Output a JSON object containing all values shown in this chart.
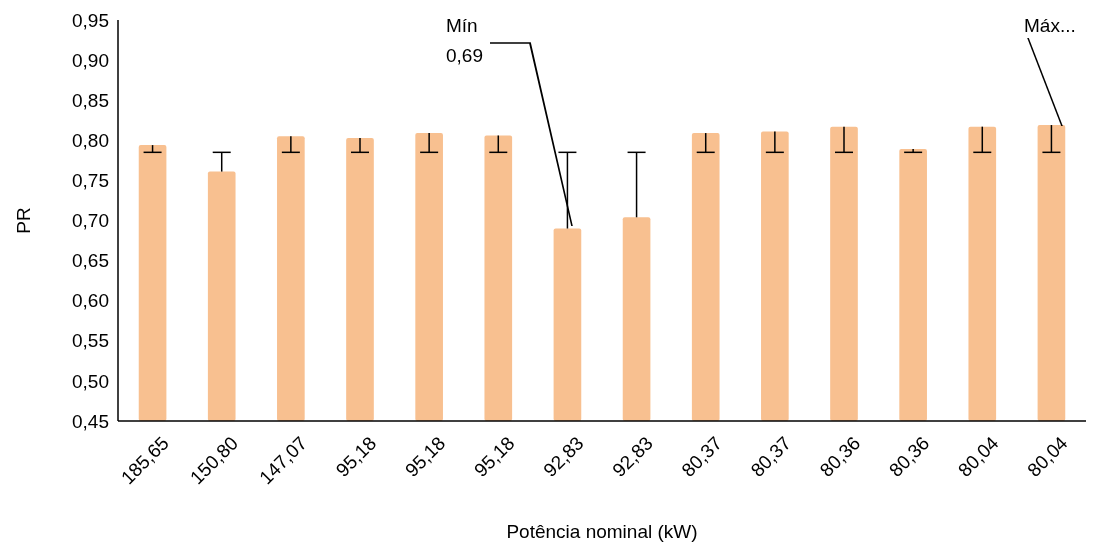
{
  "chart_data": {
    "type": "bar",
    "xlabel": "Potência nominal (kW)",
    "ylabel": "PR",
    "categories": [
      "185,65",
      "150,80",
      "147,07",
      "95,18",
      "95,18",
      "95,18",
      "92,83",
      "92,83",
      "80,37",
      "80,37",
      "80,36",
      "80,36",
      "80,04",
      "80,04"
    ],
    "values": [
      0.794,
      0.761,
      0.805,
      0.803,
      0.809,
      0.806,
      0.69,
      0.704,
      0.809,
      0.811,
      0.817,
      0.789,
      0.817,
      0.819
    ],
    "errors": [
      [
        0.785,
        0.794
      ],
      [
        0.761,
        0.785
      ],
      [
        0.785,
        0.805
      ],
      [
        0.785,
        0.803
      ],
      [
        0.785,
        0.809
      ],
      [
        0.785,
        0.806
      ],
      [
        0.69,
        0.785
      ],
      [
        0.704,
        0.785
      ],
      [
        0.785,
        0.809
      ],
      [
        0.785,
        0.811
      ],
      [
        0.785,
        0.817
      ],
      [
        0.785,
        0.789
      ],
      [
        0.785,
        0.817
      ],
      [
        0.785,
        0.819
      ]
    ],
    "color": "#f8c090",
    "ylim": [
      0.45,
      0.95
    ],
    "yticks": [
      {
        "value": 0.45,
        "label": "0,45"
      },
      {
        "value": 0.5,
        "label": "0,50"
      },
      {
        "value": 0.55,
        "label": "0,55"
      },
      {
        "value": 0.6,
        "label": "0,60"
      },
      {
        "value": 0.65,
        "label": "0,65"
      },
      {
        "value": 0.7,
        "label": "0,70"
      },
      {
        "value": 0.75,
        "label": "0,75"
      },
      {
        "value": 0.8,
        "label": "0,80"
      },
      {
        "value": 0.85,
        "label": "0,85"
      },
      {
        "value": 0.9,
        "label": "0,90"
      },
      {
        "value": 0.95,
        "label": "0,95"
      }
    ],
    "annotations": [
      "Mín\n0,69",
      "Máx..."
    ],
    "grid": false,
    "legend": false
  }
}
